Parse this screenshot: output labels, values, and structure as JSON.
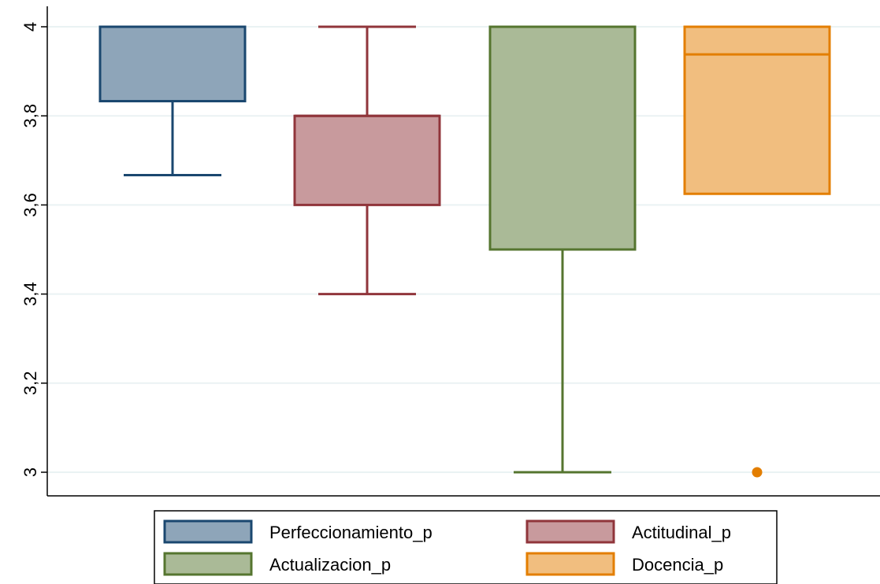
{
  "chart_data": {
    "type": "box",
    "title": "",
    "xlabel": "",
    "ylabel": "",
    "ylim": [
      3,
      4
    ],
    "yticks": [
      3,
      3.2,
      3.4,
      3.6,
      3.8,
      4
    ],
    "ytick_labels": [
      "3",
      "3,2",
      "3,4",
      "3,6",
      "3,8",
      "4"
    ],
    "grid": true,
    "legend_position": "bottom",
    "series": [
      {
        "name": "Perfeccionamiento_p",
        "color": "#1a476f",
        "fill": "#8ea5b9",
        "min": 3.667,
        "q1": 3.833,
        "median": 4,
        "q3": 4,
        "max": 4,
        "outliers": []
      },
      {
        "name": "Actitudinal_p",
        "color": "#90353b",
        "fill": "#c89a9d",
        "min": 3.4,
        "q1": 3.6,
        "median": 3.8,
        "q3": 3.8,
        "max": 4,
        "outliers": []
      },
      {
        "name": "Actualizacion_p",
        "color": "#55752f",
        "fill": "#aaba97",
        "min": 3,
        "q1": 3.5,
        "median": 4,
        "q3": 4,
        "max": 4,
        "outliers": []
      },
      {
        "name": "Docencia_p",
        "color": "#e37e00",
        "fill": "#f1be7f",
        "min": 3.625,
        "q1": 3.625,
        "median": 3.938,
        "q3": 4,
        "max": 4,
        "outliers": [
          3
        ]
      }
    ]
  }
}
